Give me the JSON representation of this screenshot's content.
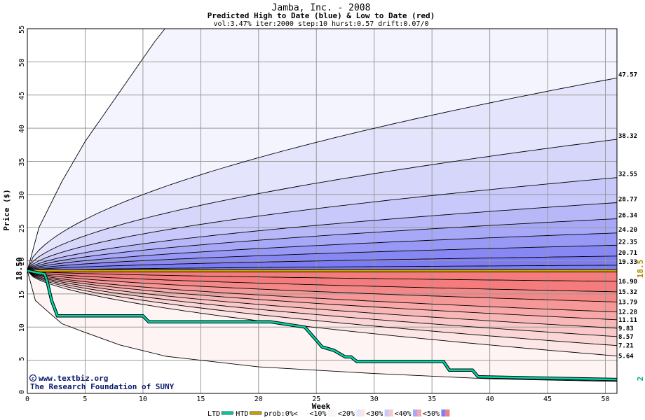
{
  "chart_data": {
    "type": "area",
    "title": "Jamba, Inc. - 2008",
    "subtitle": "Predicted High to Date (blue) &  Low to Date (red)",
    "params": "vol:3.47% iter:2000 step:10 hurst:0.57 drift:0.07/0",
    "xlabel": "Week",
    "ylabel": "Price ($)",
    "xlim": [
      0,
      51
    ],
    "ylim": [
      0,
      55
    ],
    "xticks": [
      0,
      5,
      10,
      15,
      20,
      25,
      30,
      35,
      40,
      45,
      50
    ],
    "yticks": [
      0,
      5,
      10,
      15,
      20,
      25,
      30,
      35,
      40,
      45,
      50,
      55
    ],
    "grid": true,
    "start_price": 18.5,
    "start_label": "18.50",
    "right_price_label": "18.5",
    "final_ltd_label": "2",
    "high_percentile_end_labels": [
      "47.57",
      "38.32",
      "32.55",
      "28.77",
      "26.34",
      "24.20",
      "22.35",
      "20.71",
      "19.33"
    ],
    "low_percentile_end_labels": [
      "16.90",
      "15.32",
      "13.79",
      "12.28",
      "11.11",
      "9.83",
      "8.57",
      "7.21",
      "5.64"
    ],
    "outer_high_curve": [
      [
        0,
        18.5
      ],
      [
        1,
        25
      ],
      [
        3,
        32
      ],
      [
        5,
        38
      ],
      [
        7,
        43
      ],
      [
        9,
        48
      ],
      [
        11,
        53
      ],
      [
        11.9,
        55
      ]
    ],
    "outer_low_curve": [
      [
        0,
        18.5
      ],
      [
        0.7,
        14
      ],
      [
        2,
        12
      ],
      [
        3,
        10.5
      ],
      [
        5,
        9.2
      ],
      [
        8,
        7.3
      ],
      [
        12,
        5.6
      ],
      [
        20,
        4
      ],
      [
        30,
        3
      ],
      [
        40,
        2.2
      ],
      [
        51,
        1.8
      ]
    ],
    "series": [
      {
        "name": "LTD",
        "color": "#00d8a8",
        "x": [
          0,
          1.5,
          1.7,
          2.1,
          2.6,
          10,
          10.5,
          21,
          24,
          25,
          25.5,
          26.5,
          27.5,
          28,
          28.5,
          36,
          36.5,
          38.5,
          39,
          51
        ],
        "values": [
          18.5,
          18,
          17,
          14,
          11.7,
          11.7,
          10.8,
          10.8,
          10,
          8,
          7,
          6.5,
          5.5,
          5.5,
          4.8,
          4.8,
          3.5,
          3.5,
          2.5,
          2.1
        ]
      },
      {
        "name": "HTD",
        "color": "#d8a800",
        "x": [
          0,
          51
        ],
        "values": [
          18.5,
          18.5
        ]
      }
    ],
    "legend": {
      "position": "bottom",
      "entries": [
        {
          "label": "LTD",
          "kind": "line",
          "color": "#00d8a8"
        },
        {
          "label": "HTD",
          "kind": "line",
          "color": "#d8a800"
        },
        {
          "label": "prob:0%<",
          "kind": "swatch",
          "colors": [
            "#ffffff",
            "#ffffff"
          ]
        },
        {
          "label": "<10%",
          "kind": "swatch",
          "colors": [
            "#f4f4ff",
            "#fff4f4"
          ]
        },
        {
          "label": "<20%",
          "kind": "swatch",
          "colors": [
            "#e4e4fc",
            "#fce4e4"
          ]
        },
        {
          "label": "<30%",
          "kind": "swatch",
          "colors": [
            "#c8c8fa",
            "#fac8c8"
          ]
        },
        {
          "label": "<40%",
          "kind": "swatch",
          "colors": [
            "#a8a8f8",
            "#f8a8a8"
          ]
        },
        {
          "label": "<50%",
          "kind": "swatch",
          "colors": [
            "#8080f4",
            "#f48080"
          ]
        }
      ]
    },
    "band_colors_blue": [
      "#f4f4ff",
      "#e4e4fc",
      "#d6d6fa",
      "#c8c8fa",
      "#b8b8f8",
      "#a8a8f8",
      "#9898f6",
      "#8888f4",
      "#7c7cf4"
    ],
    "band_colors_red": [
      "#fff4f4",
      "#fce6e6",
      "#fad6d6",
      "#fac8c8",
      "#f8b8b8",
      "#f8a8a8",
      "#f69898",
      "#f48888",
      "#f47c7c"
    ],
    "watermark": [
      "www.textbiz.org",
      "The Research Foundation of SUNY"
    ]
  }
}
